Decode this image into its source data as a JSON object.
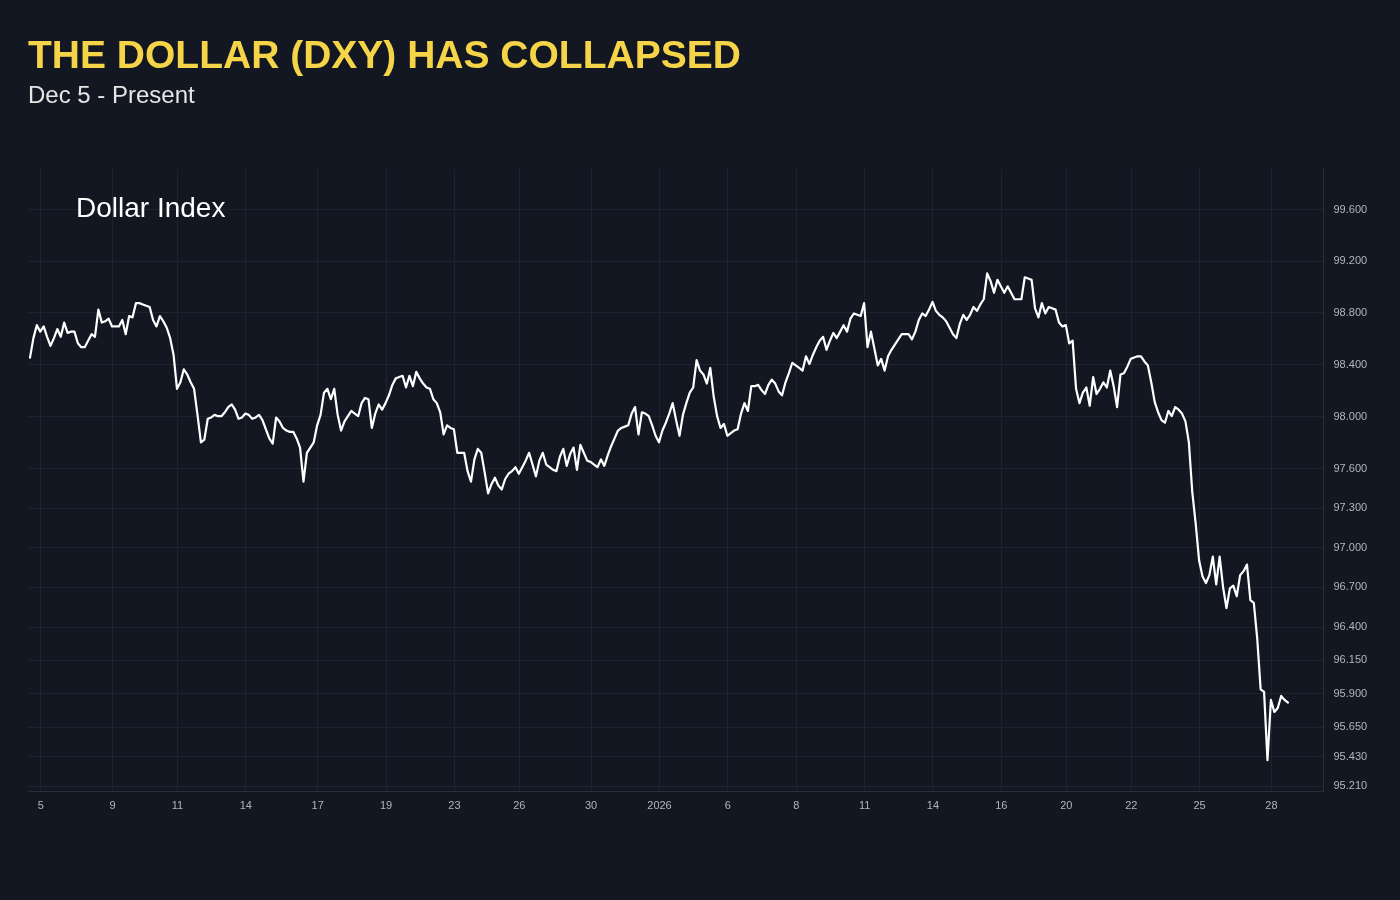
{
  "chart_data": {
    "type": "line",
    "title": "THE DOLLAR (DXY) HAS COLLAPSED",
    "subtitle": "Dec 5 - Present",
    "categories": [
      null,
      null,
      null,
      "5",
      null,
      null,
      null,
      null,
      null,
      null,
      null,
      null,
      null,
      null,
      null,
      null,
      null,
      null,
      null,
      null,
      null,
      null,
      null,
      null,
      "9",
      null,
      null,
      null,
      null,
      null,
      null,
      null,
      null,
      null,
      null,
      null,
      null,
      null,
      null,
      null,
      null,
      null,
      null,
      "11",
      null,
      null,
      null,
      null,
      null,
      null,
      null,
      null,
      null,
      null,
      null,
      null,
      null,
      null,
      null,
      null,
      null,
      null,
      null,
      "14",
      null,
      null,
      null,
      null,
      null,
      null,
      null,
      null,
      null,
      null,
      null,
      null,
      null,
      null,
      null,
      null,
      null,
      null,
      null,
      null,
      "17",
      null,
      null,
      null,
      null,
      null,
      null,
      null,
      null,
      null,
      null,
      null,
      null,
      null,
      null,
      null,
      null,
      null,
      null,
      null,
      "19",
      null,
      null,
      null,
      null,
      null,
      null,
      null,
      null,
      null,
      null,
      null,
      null,
      null,
      null,
      null,
      null,
      null,
      null,
      null,
      "23",
      null,
      null,
      null,
      null,
      null,
      null,
      null,
      null,
      null,
      null,
      null,
      null,
      null,
      null,
      null,
      null,
      null,
      null,
      "26",
      null,
      null,
      null,
      null,
      null,
      null,
      null,
      null,
      null,
      null,
      null,
      null,
      null,
      null,
      null,
      null,
      null,
      null,
      null,
      null,
      "30",
      null,
      null,
      null,
      null,
      null,
      null,
      null,
      null,
      null,
      null,
      null,
      null,
      null,
      null,
      null,
      null,
      null,
      null,
      null,
      "2026",
      null,
      null,
      null,
      null,
      null,
      null,
      null,
      null,
      null,
      null,
      null,
      null,
      null,
      null,
      null,
      null,
      null,
      null,
      null,
      "6",
      null,
      null,
      null,
      null,
      null,
      null,
      null,
      null,
      null,
      null,
      null,
      null,
      null,
      null,
      null,
      null,
      null,
      null,
      null,
      "8",
      null,
      null,
      null,
      null,
      null,
      null,
      null,
      null,
      null,
      null,
      null,
      null,
      null,
      null,
      null,
      null,
      null,
      null,
      null,
      "11",
      null,
      null,
      null,
      null,
      null,
      null,
      null,
      null,
      null,
      null,
      null,
      null,
      null,
      null,
      null,
      null,
      null,
      null,
      null,
      "14",
      null,
      null,
      null,
      null,
      null,
      null,
      null,
      null,
      null,
      null,
      null,
      null,
      null,
      null,
      null,
      null,
      null,
      null,
      null,
      "16",
      null,
      null,
      null,
      null,
      null,
      null,
      null,
      null,
      null,
      null,
      null,
      null,
      null,
      null,
      null,
      null,
      null,
      null,
      "20",
      null,
      null,
      null,
      null,
      null,
      null,
      null,
      null,
      null,
      null,
      null,
      null,
      null,
      null,
      null,
      null,
      null,
      null,
      "22",
      null,
      null,
      null,
      null,
      null,
      null,
      null,
      null,
      null,
      null,
      null,
      null,
      null,
      null,
      null,
      null,
      null,
      null,
      null,
      "25",
      null,
      null,
      null,
      null,
      null,
      null,
      null,
      null,
      null,
      null,
      null,
      null,
      null,
      null,
      null,
      null,
      null,
      null,
      null,
      null,
      "28",
      null,
      null,
      null,
      null,
      null
    ],
    "series": [
      {
        "name": "Dollar Index",
        "color": "#ffffff",
        "values": [
          98.45,
          98.6,
          98.7,
          98.65,
          98.69,
          98.61,
          98.54,
          98.6,
          98.67,
          98.61,
          98.72,
          98.64,
          98.65,
          98.65,
          98.56,
          98.53,
          98.53,
          98.58,
          98.63,
          98.61,
          98.82,
          98.72,
          98.73,
          98.75,
          98.69,
          98.69,
          98.69,
          98.74,
          98.63,
          98.77,
          98.76,
          98.87,
          98.87,
          98.86,
          98.85,
          98.84,
          98.74,
          98.69,
          98.77,
          98.73,
          98.68,
          98.6,
          98.47,
          98.21,
          98.26,
          98.36,
          98.32,
          98.26,
          98.21,
          98.01,
          97.8,
          97.82,
          97.98,
          97.99,
          98.01,
          98.0,
          98.0,
          98.03,
          98.07,
          98.09,
          98.05,
          97.98,
          97.99,
          98.02,
          98.01,
          97.98,
          97.99,
          98.01,
          97.97,
          97.9,
          97.83,
          97.79,
          97.99,
          97.96,
          97.91,
          97.89,
          97.88,
          97.88,
          97.83,
          97.76,
          97.5,
          97.72,
          97.76,
          97.8,
          97.93,
          98.01,
          98.18,
          98.21,
          98.13,
          98.21,
          98.01,
          97.89,
          97.96,
          98.0,
          98.04,
          98.02,
          98.0,
          98.1,
          98.14,
          98.13,
          97.91,
          98.02,
          98.09,
          98.05,
          98.1,
          98.16,
          98.24,
          98.29,
          98.3,
          98.31,
          98.22,
          98.31,
          98.23,
          98.34,
          98.29,
          98.25,
          98.22,
          98.21,
          98.13,
          98.1,
          98.03,
          97.86,
          97.93,
          97.91,
          97.9,
          97.72,
          97.72,
          97.72,
          97.58,
          97.5,
          97.67,
          97.75,
          97.72,
          97.57,
          97.41,
          97.48,
          97.53,
          97.47,
          97.44,
          97.52,
          97.56,
          97.58,
          97.61,
          97.56,
          97.61,
          97.66,
          97.72,
          97.63,
          97.54,
          97.66,
          97.72,
          97.63,
          97.61,
          97.59,
          97.58,
          97.69,
          97.75,
          97.62,
          97.71,
          97.76,
          97.59,
          97.78,
          97.72,
          97.66,
          97.65,
          97.63,
          97.61,
          97.67,
          97.62,
          97.7,
          97.77,
          97.83,
          97.89,
          97.91,
          97.92,
          97.93,
          98.02,
          98.07,
          97.86,
          98.03,
          98.02,
          98.0,
          97.93,
          97.85,
          97.8,
          97.89,
          97.95,
          98.02,
          98.1,
          97.97,
          97.85,
          98.01,
          98.1,
          98.18,
          98.22,
          98.43,
          98.35,
          98.32,
          98.25,
          98.37,
          98.15,
          98.0,
          97.91,
          97.94,
          97.85,
          97.87,
          97.89,
          97.9,
          98.02,
          98.1,
          98.04,
          98.23,
          98.23,
          98.24,
          98.2,
          98.17,
          98.24,
          98.28,
          98.25,
          98.19,
          98.16,
          98.26,
          98.33,
          98.41,
          98.39,
          98.37,
          98.35,
          98.46,
          98.4,
          98.47,
          98.53,
          98.58,
          98.61,
          98.51,
          98.58,
          98.64,
          98.6,
          98.65,
          98.7,
          98.65,
          98.75,
          98.79,
          98.78,
          98.77,
          98.87,
          98.53,
          98.65,
          98.52,
          98.39,
          98.44,
          98.35,
          98.46,
          98.51,
          98.55,
          98.59,
          98.63,
          98.63,
          98.63,
          98.59,
          98.65,
          98.74,
          98.79,
          98.77,
          98.82,
          98.88,
          98.81,
          98.78,
          98.76,
          98.73,
          98.68,
          98.63,
          98.6,
          98.71,
          98.78,
          98.74,
          98.78,
          98.84,
          98.81,
          98.86,
          98.9,
          99.1,
          99.04,
          98.95,
          99.05,
          99.0,
          98.95,
          99.0,
          98.95,
          98.9,
          98.9,
          98.9,
          99.07,
          99.06,
          99.05,
          98.83,
          98.76,
          98.87,
          98.79,
          98.84,
          98.83,
          98.82,
          98.72,
          98.69,
          98.7,
          98.56,
          98.58,
          98.21,
          98.1,
          98.18,
          98.22,
          98.08,
          98.3,
          98.17,
          98.21,
          98.26,
          98.22,
          98.35,
          98.23,
          98.07,
          98.32,
          98.33,
          98.38,
          98.44,
          98.45,
          98.46,
          98.46,
          98.42,
          98.39,
          98.26,
          98.11,
          98.03,
          97.97,
          97.95,
          98.04,
          98.0,
          98.07,
          98.05,
          98.02,
          97.96,
          97.8,
          97.42,
          97.18,
          96.9,
          96.78,
          96.73,
          96.79,
          96.93,
          96.72,
          96.93,
          96.7,
          96.54,
          96.69,
          96.71,
          96.63,
          96.79,
          96.82,
          96.87,
          96.6,
          96.58,
          96.31,
          95.93,
          95.91,
          95.4,
          95.85,
          95.76,
          95.79,
          95.88,
          95.85,
          95.83
        ]
      }
    ],
    "ylim": [
      95.17,
      99.92
    ],
    "yticks": [
      {
        "value": 99.6,
        "label": "99.600"
      },
      {
        "value": 99.2,
        "label": "99.200"
      },
      {
        "value": 98.8,
        "label": "98.800"
      },
      {
        "value": 98.4,
        "label": "98.400"
      },
      {
        "value": 98.0,
        "label": "98.000"
      },
      {
        "value": 97.6,
        "label": "97.600"
      },
      {
        "value": 97.3,
        "label": "97.300"
      },
      {
        "value": 97.0,
        "label": "97.000"
      },
      {
        "value": 96.7,
        "label": "96.700"
      },
      {
        "value": 96.4,
        "label": "96.400"
      },
      {
        "value": 96.15,
        "label": "96.150"
      },
      {
        "value": 95.9,
        "label": "95.900"
      },
      {
        "value": 95.65,
        "label": "95.650"
      },
      {
        "value": 95.43,
        "label": "95.430"
      },
      {
        "value": 95.21,
        "label": "95.210"
      }
    ],
    "log": true,
    "grid": true,
    "legend": "top left",
    "line_style": "solid"
  }
}
